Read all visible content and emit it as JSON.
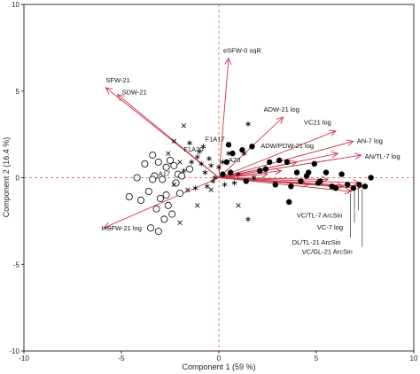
{
  "chart_data": {
    "type": "scatter",
    "title": "",
    "xlabel": "Component 1  (59 %)",
    "ylabel": "Component 2  (16.4 %)",
    "xlim": [
      -10,
      10
    ],
    "ylim": [
      -10,
      10
    ],
    "xticks": [
      -10,
      -5,
      0,
      5,
      10
    ],
    "yticks": [
      -10,
      -5,
      0,
      5,
      10
    ],
    "xtick_labels": [
      "-10",
      "-5",
      "0",
      "5",
      "10"
    ],
    "ytick_labels": [
      "-10",
      "-5",
      "0",
      "5",
      "10"
    ],
    "reference_lines": {
      "x": 0,
      "y": 0,
      "color": "#d9534f",
      "style": "dashed"
    },
    "loading_color": "#c8374a",
    "loadings": [
      {
        "label": "eSFW-0 sqR",
        "x": 0.5,
        "y": 6.9
      },
      {
        "label": "SFW-21",
        "x": -5.8,
        "y": 5.2
      },
      {
        "label": "SDW-21",
        "x": -5.2,
        "y": 4.8
      },
      {
        "label": "ADW-21 log",
        "x": 3.3,
        "y": 3.5
      },
      {
        "label": "VC21 log",
        "x": 6.0,
        "y": 2.7
      },
      {
        "label": "AN-7 log",
        "x": 6.9,
        "y": 2.1
      },
      {
        "label": "ADW/PDW-21 log",
        "x": 6.1,
        "y": 1.4
      },
      {
        "label": "AN/TL-7 log",
        "x": 7.3,
        "y": 1.3
      },
      {
        "label": "VC/TL-7 ArcSin",
        "x": 7.2,
        "y": -0.3
      },
      {
        "label": "VC-7 log",
        "x": 7.0,
        "y": -0.6
      },
      {
        "label": "DL/TL-21 ArcSin",
        "x": 6.8,
        "y": -0.8
      },
      {
        "label": "VC/GL-21 ArcSin",
        "x": 7.4,
        "y": -0.5
      },
      {
        "label": "InSFW-21 log",
        "x": -5.9,
        "y": -2.9
      }
    ],
    "extra_arrows": [
      {
        "x": 2.5,
        "y": 0.2
      },
      {
        "x": 3.2,
        "y": 0.4
      },
      {
        "x": 4.0,
        "y": 0.9
      },
      {
        "x": 4.6,
        "y": -0.4
      },
      {
        "x": 5.6,
        "y": -0.1
      },
      {
        "x": 6.4,
        "y": -0.5
      }
    ],
    "point_labels": [
      {
        "label": "F1A17",
        "x": -0.2,
        "y": 2.1
      },
      {
        "label": "F1A20",
        "x": -1.3,
        "y": 1.5
      },
      {
        "label": "A20",
        "x": 0.8,
        "y": 0.9
      },
      {
        "label": "A17",
        "x": -2.8,
        "y": 0.1
      }
    ],
    "series": [
      {
        "marker": "filled-circle",
        "x": [
          0.6,
          0.7,
          1.2,
          1.7,
          2.1,
          2.6,
          2.9,
          3.5,
          3.7,
          4.0,
          4.2,
          4.6,
          4.9,
          5.1,
          5.5,
          5.8,
          6.0,
          6.3,
          6.6,
          6.9,
          7.2,
          7.5,
          7.8,
          0.2,
          0.5,
          1.4,
          2.4,
          3.1,
          3.6,
          5.2,
          4.5,
          0.4
        ],
        "y": [
          0.3,
          1.4,
          1.6,
          1.8,
          0.4,
          0.9,
          -0.4,
          0.9,
          -0.5,
          0.3,
          -0.2,
          0.3,
          0.8,
          -0.3,
          0.3,
          -0.5,
          -0.6,
          0.2,
          -0.4,
          -0.6,
          -0.4,
          -0.5,
          0.0,
          0.2,
          1.9,
          -0.2,
          0.5,
          1.0,
          -1.4,
          -0.2,
          0.1,
          0.9
        ]
      },
      {
        "marker": "open-circle",
        "x": [
          -4.2,
          -3.8,
          -3.4,
          -3.3,
          -3.1,
          -2.9,
          -2.7,
          -2.5,
          -2.3,
          -2.1,
          -3.6,
          -3.0,
          -2.6,
          -2.2,
          -1.9,
          -4.0,
          -3.2,
          -2.8,
          -2.4,
          -3.5,
          -3.1,
          -2.7,
          -4.6,
          -1.5,
          -2.0,
          -3.4
        ],
        "y": [
          0.0,
          0.8,
          1.3,
          0.1,
          0.9,
          -0.1,
          0.6,
          1.0,
          0.7,
          0.2,
          -0.8,
          -1.2,
          -1.6,
          -0.3,
          0.1,
          -1.3,
          -1.8,
          -2.4,
          -2.1,
          -2.9,
          -3.1,
          -1.0,
          -1.1,
          0.5,
          -0.9,
          -0.1
        ]
      },
      {
        "marker": "asterisk",
        "x": [
          -1.5,
          -1.1,
          -0.9,
          -0.7,
          -0.5,
          -0.3,
          0.0,
          0.2,
          0.5,
          0.8,
          1.3,
          1.5,
          1.8,
          -1.8,
          -1.2,
          -0.6,
          -0.2,
          1.0,
          -0.8,
          -1.4,
          -1.0,
          -0.4,
          0.3,
          1.5
        ],
        "y": [
          2.0,
          1.2,
          0.8,
          0.3,
          1.1,
          -0.2,
          0.6,
          0.9,
          1.4,
          -0.3,
          1.4,
          3.1,
          0.0,
          0.4,
          -0.6,
          -0.5,
          0.0,
          0.2,
          1.8,
          0.9,
          1.5,
          0.7,
          -0.4,
          -2.4
        ]
      },
      {
        "marker": "cross",
        "x": [
          -2.3,
          -2.6,
          -2.0,
          -1.6,
          -2.0,
          -1.1,
          -0.4,
          1.0,
          -1.8,
          -2.3
        ],
        "y": [
          2.1,
          1.4,
          0.9,
          -0.7,
          -2.6,
          -1.6,
          -0.7,
          -1.6,
          3.0,
          -0.4
        ]
      }
    ]
  }
}
